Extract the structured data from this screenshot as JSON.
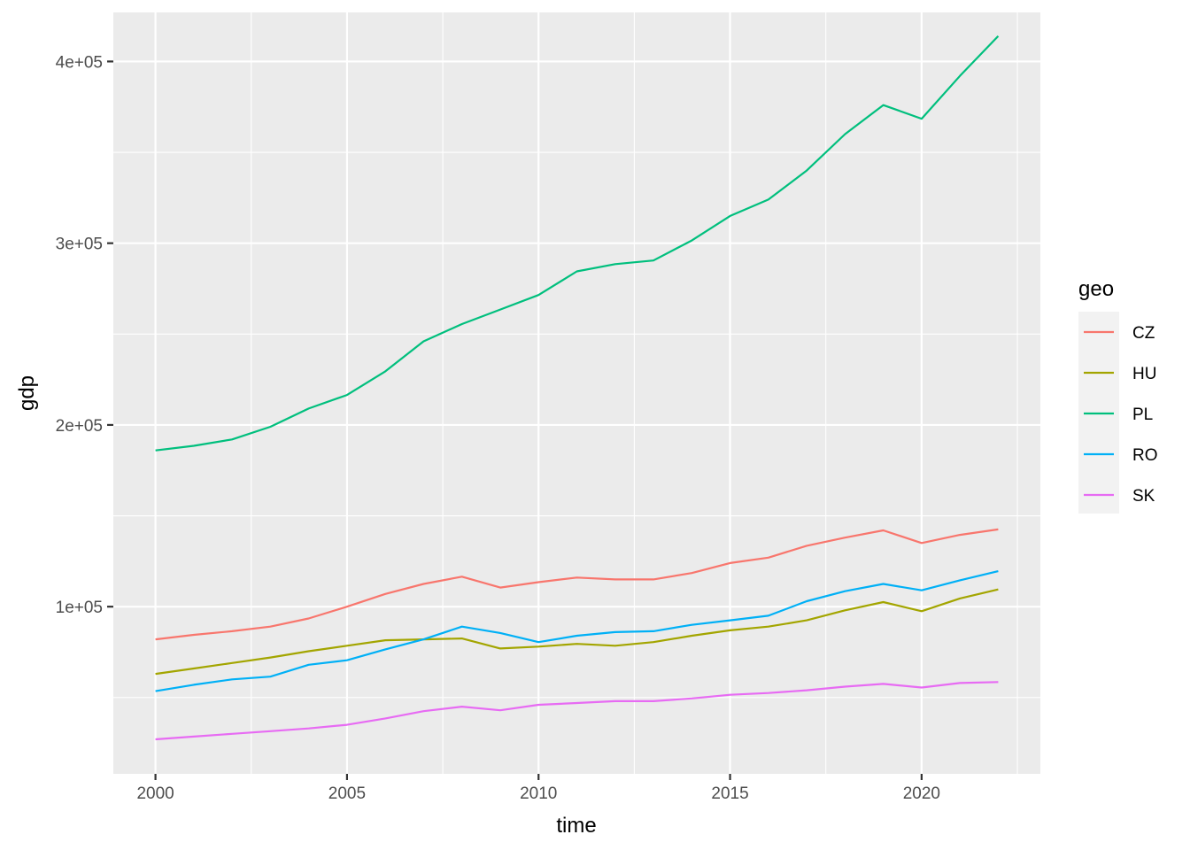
{
  "chart_data": {
    "type": "line",
    "title": "",
    "xlabel": "time",
    "ylabel": "gdp",
    "x": [
      2000,
      2001,
      2002,
      2003,
      2004,
      2005,
      2006,
      2007,
      2008,
      2009,
      2010,
      2011,
      2012,
      2013,
      2014,
      2015,
      2016,
      2017,
      2018,
      2019,
      2020,
      2021,
      2022
    ],
    "xlim": [
      1998.9,
      2023.1
    ],
    "ylim": [
      8000,
      427000
    ],
    "x_ticks": [
      2000,
      2005,
      2010,
      2015,
      2020
    ],
    "x_tick_labels": [
      "2000",
      "2005",
      "2010",
      "2015",
      "2020"
    ],
    "y_ticks": [
      100000,
      200000,
      300000,
      400000
    ],
    "y_tick_labels": [
      "1e+05",
      "2e+05",
      "3e+05",
      "4e+05"
    ],
    "grid": true,
    "legend": {
      "title": "geo",
      "position": "right"
    },
    "series": [
      {
        "name": "CZ",
        "color": "#F8766D",
        "values": [
          82000,
          84500,
          86500,
          89000,
          93500,
          100000,
          107000,
          112500,
          116500,
          110500,
          113500,
          116000,
          115000,
          115000,
          118500,
          124000,
          127000,
          133500,
          138000,
          142000,
          135000,
          139500,
          142500
        ]
      },
      {
        "name": "HU",
        "color": "#A3A500",
        "values": [
          63000,
          66000,
          69000,
          72000,
          75500,
          78500,
          81500,
          82000,
          82500,
          77000,
          78000,
          79500,
          78500,
          80500,
          84000,
          87000,
          89000,
          92500,
          98000,
          102500,
          97500,
          104500,
          109500
        ]
      },
      {
        "name": "PL",
        "color": "#00BF7D",
        "values": [
          186000,
          188500,
          192000,
          199000,
          209000,
          216500,
          229500,
          246000,
          255500,
          263500,
          271500,
          284500,
          288500,
          290500,
          301500,
          315000,
          324000,
          340000,
          360000,
          376000,
          368500,
          392000,
          414000
        ]
      },
      {
        "name": "RO",
        "color": "#00B0F6",
        "values": [
          53500,
          57000,
          60000,
          61500,
          68000,
          70500,
          76500,
          82000,
          89000,
          85500,
          80500,
          84000,
          86000,
          86500,
          90000,
          92500,
          95000,
          103000,
          108500,
          112500,
          109000,
          114500,
          119500
        ]
      },
      {
        "name": "SK",
        "color": "#E76BF3",
        "values": [
          27000,
          28500,
          30000,
          31500,
          33000,
          35000,
          38500,
          42500,
          45000,
          43000,
          46000,
          47000,
          48000,
          48000,
          49500,
          51500,
          52500,
          54000,
          56000,
          57500,
          55500,
          58000,
          58500
        ]
      }
    ]
  }
}
